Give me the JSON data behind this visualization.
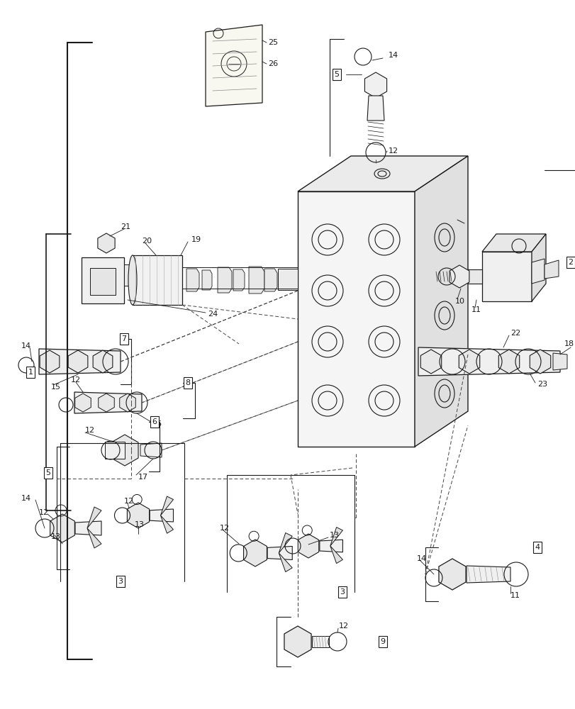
{
  "bg_color": "#ffffff",
  "lc": "#1a1a1a",
  "lw": 0.8,
  "fig_w": 8.12,
  "fig_h": 10.0,
  "dpi": 100
}
